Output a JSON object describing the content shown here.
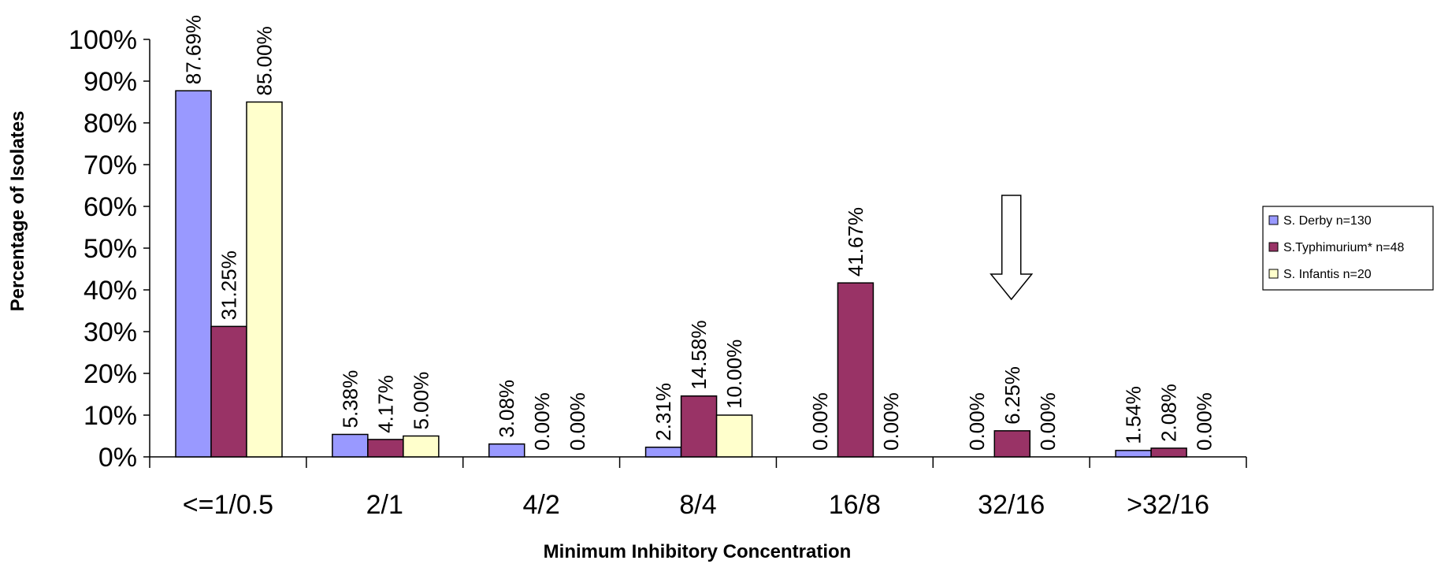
{
  "chart_data": {
    "type": "bar",
    "title": "",
    "xlabel": "Minimum Inhibitory Concentration",
    "ylabel": "Percentage of Isolates",
    "categories": [
      "<=1/0.5",
      "2/1",
      "4/2",
      "8/4",
      "16/8",
      "32/16",
      ">32/16"
    ],
    "ylim": [
      0,
      100
    ],
    "yticks": [
      "0%",
      "10%",
      "20%",
      "30%",
      "40%",
      "50%",
      "60%",
      "70%",
      "80%",
      "90%",
      "100%"
    ],
    "legend_position": "right",
    "grid": false,
    "series": [
      {
        "name": "S. Derby n=130",
        "color": "#9999FF",
        "values": [
          87.69,
          5.38,
          3.08,
          2.31,
          0.0,
          0.0,
          1.54
        ],
        "labels": [
          "87.69%",
          "5.38%",
          "3.08%",
          "2.31%",
          "0.00%",
          "0.00%",
          "1.54%"
        ]
      },
      {
        "name": "S.Typhimurium* n=48",
        "color": "#993366",
        "values": [
          31.25,
          4.17,
          0.0,
          14.58,
          41.67,
          6.25,
          2.08
        ],
        "labels": [
          "31.25%",
          "4.17%",
          "0.00%",
          "14.58%",
          "41.67%",
          "6.25%",
          "2.08%"
        ]
      },
      {
        "name": "S. Infantis n=20",
        "color": "#FFFFCC",
        "values": [
          85.0,
          5.0,
          0.0,
          10.0,
          0.0,
          0.0,
          0.0
        ],
        "labels": [
          "85.00%",
          "5.00%",
          "0.00%",
          "10.00%",
          "0.00%",
          "0.00%",
          "0.00%"
        ]
      }
    ],
    "annotations": [
      {
        "type": "arrow-down",
        "category": "32/16"
      }
    ]
  }
}
